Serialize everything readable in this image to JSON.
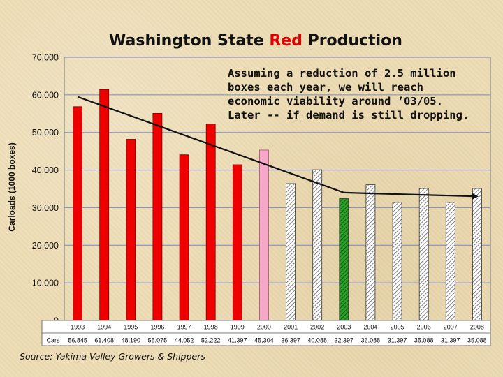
{
  "chart_data": {
    "type": "bar",
    "title_parts": [
      "Washington State ",
      "Red",
      " Production"
    ],
    "title_colors": {
      "normal": "#111111",
      "highlight": "#e00000"
    },
    "ylabel": "Carloads (1000 boxes)",
    "ylim": [
      0,
      70000
    ],
    "yticks": [
      "0",
      "10,000",
      "20,000",
      "30,000",
      "40,000",
      "50,000",
      "60,000",
      "70,000"
    ],
    "ytick_values": [
      0,
      10000,
      20000,
      30000,
      40000,
      50000,
      60000,
      70000
    ],
    "grid": true,
    "categories": [
      "1993",
      "1994",
      "1995",
      "1996",
      "1997",
      "1998",
      "1999",
      "2000",
      "2001",
      "2002",
      "2003",
      "2004",
      "2005",
      "2006",
      "2007",
      "2008"
    ],
    "values": [
      56845,
      61408,
      48190,
      55075,
      44052,
      52222,
      41397,
      45304,
      36397,
      40088,
      32397,
      36088,
      31397,
      35088,
      31397,
      35088
    ],
    "bar_styles": [
      "actual",
      "actual",
      "actual",
      "actual",
      "actual",
      "actual",
      "actual",
      "estimate",
      "projected",
      "projected",
      "highlight",
      "projected",
      "projected",
      "projected",
      "projected",
      "projected"
    ],
    "style_colors": {
      "actual": "#ee0000",
      "estimate": "#f6a8c8",
      "projected": "#ffffff",
      "highlight": "#1a8a1a"
    },
    "table_label": "Cars",
    "value_labels": [
      "56,845",
      "61,408",
      "48,190",
      "55,075",
      "44,052",
      "52,222",
      "41,397",
      "45,304",
      "36,397",
      "40,088",
      "32,397",
      "36,088",
      "31,397",
      "35,088",
      "31,397",
      "35,088"
    ],
    "trend_line": {
      "points": [
        [
          1993,
          59500
        ],
        [
          2003,
          34000
        ],
        [
          2008,
          33000
        ]
      ]
    },
    "annotation": [
      "Assuming a reduction of 2.5 million",
      "boxes each year, we will reach",
      "economic viability around ’03/05.",
      "Later -- if demand is still dropping."
    ],
    "source": "Source: Yakima Valley Growers & Shippers"
  }
}
